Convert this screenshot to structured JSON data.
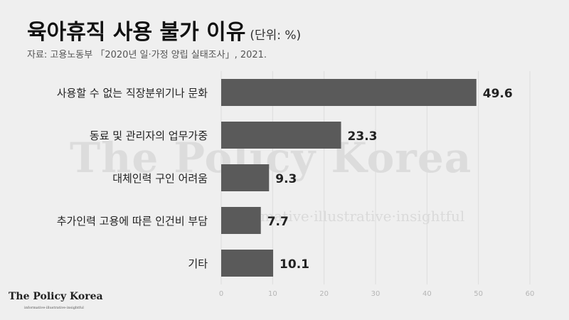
{
  "header": {
    "title": "육아휴직 사용 불가 이유",
    "unit": "(단위: %)",
    "source": "자료: 고용노동부 「2020년 일·가정 양립 실태조사」, 2021."
  },
  "watermark": {
    "brand": "The Policy Korea",
    "tagline": "informative·illustrative·insightful"
  },
  "logo": {
    "brand": "The Policy Korea",
    "tagline": "informative·illustrative·insightful"
  },
  "colors": {
    "bar": "#5a5a5a",
    "background": "#efefef",
    "label": "#222222",
    "tick": "#b5b5b5",
    "grid": "#dddddd"
  },
  "chart_data": {
    "type": "bar",
    "orientation": "horizontal",
    "categories": [
      "사용할 수 없는 직장분위기나 문화",
      "동료 및 관리자의 업무가중",
      "대체인력 구인 어려움",
      "추가인력 고용에 따른 인건비 부담",
      "기타"
    ],
    "values": [
      49.6,
      23.3,
      9.3,
      7.7,
      10.1
    ],
    "value_labels": [
      "49.6",
      "23.3",
      "9.3",
      "7.7",
      "10.1"
    ],
    "xlim": [
      0,
      60
    ],
    "xticks": [
      0,
      10,
      20,
      30,
      40,
      50,
      60
    ],
    "grid": true,
    "title": "육아휴직 사용 불가 이유",
    "xlabel": "",
    "ylabel": ""
  }
}
